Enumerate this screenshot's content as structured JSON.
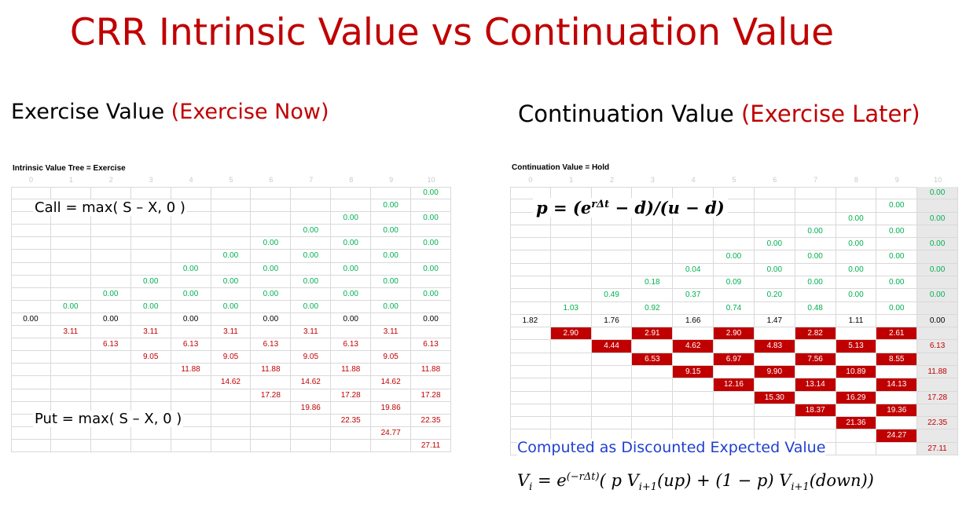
{
  "title": "CRR Intrinsic Value vs Continuation Value",
  "left": {
    "heading": "Exercise Value",
    "heading_note": "(Exercise Now)",
    "caption": "Intrinsic Value Tree = Exercise",
    "columns": [
      0,
      1,
      2,
      3,
      4,
      5,
      6,
      7,
      8,
      9,
      10
    ],
    "rows": [
      [
        null,
        null,
        null,
        null,
        null,
        null,
        null,
        null,
        null,
        null,
        "0.00"
      ],
      [
        null,
        null,
        null,
        null,
        null,
        null,
        null,
        null,
        null,
        "0.00",
        null
      ],
      [
        null,
        null,
        null,
        null,
        null,
        null,
        null,
        null,
        "0.00",
        null,
        "0.00"
      ],
      [
        null,
        null,
        null,
        null,
        null,
        null,
        null,
        "0.00",
        null,
        "0.00",
        null
      ],
      [
        null,
        null,
        null,
        null,
        null,
        null,
        "0.00",
        null,
        "0.00",
        null,
        "0.00"
      ],
      [
        null,
        null,
        null,
        null,
        null,
        "0.00",
        null,
        "0.00",
        null,
        "0.00",
        null
      ],
      [
        null,
        null,
        null,
        null,
        "0.00",
        null,
        "0.00",
        null,
        "0.00",
        null,
        "0.00"
      ],
      [
        null,
        null,
        null,
        "0.00",
        null,
        "0.00",
        null,
        "0.00",
        null,
        "0.00",
        null
      ],
      [
        null,
        null,
        "0.00",
        null,
        "0.00",
        null,
        "0.00",
        null,
        "0.00",
        null,
        "0.00"
      ],
      [
        null,
        "0.00",
        null,
        "0.00",
        null,
        "0.00",
        null,
        "0.00",
        null,
        "0.00",
        null
      ],
      [
        "0.00",
        null,
        "0.00",
        null,
        "0.00",
        null,
        "0.00",
        null,
        "0.00",
        null,
        "0.00"
      ],
      [
        null,
        "3.11",
        null,
        "3.11",
        null,
        "3.11",
        null,
        "3.11",
        null,
        "3.11",
        null
      ],
      [
        null,
        null,
        "6.13",
        null,
        "6.13",
        null,
        "6.13",
        null,
        "6.13",
        null,
        "6.13"
      ],
      [
        null,
        null,
        null,
        "9.05",
        null,
        "9.05",
        null,
        "9.05",
        null,
        "9.05",
        null
      ],
      [
        null,
        null,
        null,
        null,
        "11.88",
        null,
        "11.88",
        null,
        "11.88",
        null,
        "11.88"
      ],
      [
        null,
        null,
        null,
        null,
        null,
        "14.62",
        null,
        "14.62",
        null,
        "14.62",
        null
      ],
      [
        null,
        null,
        null,
        null,
        null,
        null,
        "17.28",
        null,
        "17.28",
        null,
        "17.28"
      ],
      [
        null,
        null,
        null,
        null,
        null,
        null,
        null,
        "19.86",
        null,
        "19.86",
        null
      ],
      [
        null,
        null,
        null,
        null,
        null,
        null,
        null,
        null,
        "22.35",
        null,
        "22.35"
      ],
      [
        null,
        null,
        null,
        null,
        null,
        null,
        null,
        null,
        null,
        "24.77",
        null
      ],
      [
        null,
        null,
        null,
        null,
        null,
        null,
        null,
        null,
        null,
        null,
        "27.11"
      ]
    ],
    "call_formula": "Call = max( S – X, 0 )",
    "put_formula": "Put = max( S – X, 0 )"
  },
  "right": {
    "heading": "Continuation Value",
    "heading_note": "(Exercise Later)",
    "caption": "Continuation Value = Hold",
    "columns": [
      0,
      1,
      2,
      3,
      4,
      5,
      6,
      7,
      8,
      9,
      10
    ],
    "rows": [
      [
        null,
        null,
        null,
        null,
        null,
        null,
        null,
        null,
        null,
        null,
        "0.00"
      ],
      [
        null,
        null,
        null,
        null,
        null,
        null,
        null,
        null,
        null,
        "0.00",
        null
      ],
      [
        null,
        null,
        null,
        null,
        null,
        null,
        null,
        null,
        "0.00",
        null,
        "0.00"
      ],
      [
        null,
        null,
        null,
        null,
        null,
        null,
        null,
        "0.00",
        null,
        "0.00",
        null
      ],
      [
        null,
        null,
        null,
        null,
        null,
        null,
        "0.00",
        null,
        "0.00",
        null,
        "0.00"
      ],
      [
        null,
        null,
        null,
        null,
        null,
        "0.00",
        null,
        "0.00",
        null,
        "0.00",
        null
      ],
      [
        null,
        null,
        null,
        null,
        "0.04",
        null,
        "0.00",
        null,
        "0.00",
        null,
        "0.00"
      ],
      [
        null,
        null,
        null,
        "0.18",
        null,
        "0.09",
        null,
        "0.00",
        null,
        "0.00",
        null
      ],
      [
        null,
        null,
        "0.49",
        null,
        "0.37",
        null,
        "0.20",
        null,
        "0.00",
        null,
        "0.00"
      ],
      [
        null,
        "1.03",
        null,
        "0.92",
        null,
        "0.74",
        null,
        "0.48",
        null,
        "0.00",
        null
      ],
      [
        "1.82",
        null,
        "1.76",
        null,
        "1.66",
        null,
        "1.47",
        null,
        "1.11",
        null,
        "0.00"
      ],
      [
        null,
        "2.90",
        null,
        "2.91",
        null,
        "2.90",
        null,
        "2.82",
        null,
        "2.61",
        null
      ],
      [
        null,
        null,
        "4.44",
        null,
        "4.62",
        null,
        "4.83",
        null,
        "5.13",
        null,
        "6.13"
      ],
      [
        null,
        null,
        null,
        "6.53",
        null,
        "6.97",
        null,
        "7.56",
        null,
        "8.55",
        null
      ],
      [
        null,
        null,
        null,
        null,
        "9.15",
        null,
        "9.90",
        null,
        "10.89",
        null,
        "11.88"
      ],
      [
        null,
        null,
        null,
        null,
        null,
        "12.16",
        null,
        "13.14",
        null,
        "14.13",
        null
      ],
      [
        null,
        null,
        null,
        null,
        null,
        null,
        "15.30",
        null,
        "16.29",
        null,
        "17.28"
      ],
      [
        null,
        null,
        null,
        null,
        null,
        null,
        null,
        "18.37",
        null,
        "19.36",
        null
      ],
      [
        null,
        null,
        null,
        null,
        null,
        null,
        null,
        null,
        "21.36",
        null,
        "22.35"
      ],
      [
        null,
        null,
        null,
        null,
        null,
        null,
        null,
        null,
        null,
        "24.27",
        null
      ],
      [
        null,
        null,
        null,
        null,
        null,
        null,
        null,
        null,
        null,
        null,
        "27.11"
      ]
    ],
    "p_formula": [
      "p = (e",
      "rΔt",
      " − d)/(u − d)"
    ],
    "note": "Computed as Discounted Expected Value",
    "v_formula": [
      "V",
      "i",
      " =  e",
      "(−rΔt)",
      "( p V",
      "i+1",
      "(up) + (1 − p) V",
      "i+1",
      "(down))"
    ]
  }
}
